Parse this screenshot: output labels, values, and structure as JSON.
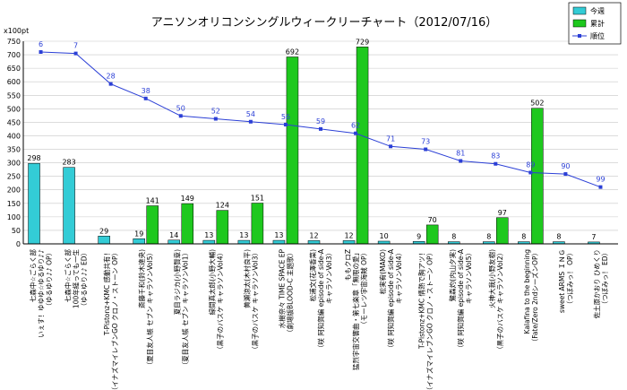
{
  "chart_data": {
    "type": "bar",
    "title": "アニソンオリコンシングルウィークリーチャート（2012/07/16）",
    "unit_label": "x100pt",
    "ylim": [
      0,
      750
    ],
    "yticks": [
      0,
      50,
      100,
      150,
      200,
      250,
      300,
      350,
      400,
      450,
      500,
      550,
      600,
      650,
      700,
      750
    ],
    "grid": true,
    "legend_position": "top-right",
    "categories": [
      [
        "七森中☆ごらく部",
        "いぇす！ゆゆゆ☆ゆるゆり♪♪",
        "（ゆるゆり♪♪ OP）"
      ],
      [
        "七森中☆ごらく部",
        "100年経っても一生",
        "（ゆるゆり♪♪ ED）"
      ],
      [
        "T-Pistonz+KMC 感動共有！",
        "（イナズマイレブンGO クロノ・ストーン OP）"
      ],
      [
        "斎藤千和(鈴木達央)",
        "（夏目友人帳 セブン キャラソンVol5）"
      ],
      [
        "夏目ラジカ(小野賢章)",
        "（夏目友人帳 セブン キャラソンVol1）"
      ],
      [
        "緑間真太郎(小野大輔)",
        "（黒子のバスケ キャラソンVol4）"
      ],
      [
        "黄瀬涼太(木村良平)",
        "（黒子のバスケ キャラソンVol3）"
      ],
      [
        "水樹奈々 TIME SPACE EP",
        "（劇場版BLOOD-C 主題歌）"
      ],
      [
        "松浦文(花澤香菜)",
        "（咲 阿知賀編 episode of side-A",
        "キャラソンVol3）"
      ],
      [
        "ももクロZ",
        "猛烈宇宙交響曲・第七楽章「無限の愛」",
        "（モーレツ宇宙海賊 OP）"
      ],
      [
        "松実宥(MAKO)",
        "（咲 阿知賀編 episode of side-A",
        "キャラソンVol4）"
      ],
      [
        "T-Pistonz+KMC 情熱で胸アツ！",
        "（イナズマイレブンGO クロノ・ストーン OP）"
      ],
      [
        "鷺森灼(内山夕実)",
        "（咲 阿知賀編 episode of side-A",
        "キャラソンVol5）"
      ],
      [
        "火神大我(小野友樹)",
        "（黒子のバスケ キャラソンVol2）"
      ],
      [
        "Kalafina to the beginning",
        "（Fate/Zero 2ndシーズンOP）"
      ],
      [
        "sweet ARMS ＩＮＧ",
        "（つぼみっ！ OP）"
      ],
      [
        "佐土原かおり ひめくり",
        "（つぼみっ！ ED）"
      ]
    ],
    "series": [
      {
        "name": "今週",
        "type": "bar",
        "color": "#33ccd6",
        "values": [
          298,
          283,
          29,
          19,
          14,
          13,
          13,
          13,
          12,
          12,
          10,
          9,
          8,
          8,
          8,
          8,
          7
        ]
      },
      {
        "name": "累計",
        "type": "bar",
        "color": "#1ec81e",
        "values": [
          null,
          null,
          null,
          141,
          149,
          124,
          151,
          692,
          null,
          729,
          null,
          70,
          null,
          97,
          502,
          null,
          null
        ]
      },
      {
        "name": "順位",
        "type": "line",
        "color": "#2b3fd6",
        "axis": "rank",
        "values": [
          6,
          7,
          28,
          38,
          50,
          52,
          54,
          56,
          59,
          62,
          71,
          73,
          81,
          83,
          89,
          90,
          99
        ]
      }
    ]
  }
}
